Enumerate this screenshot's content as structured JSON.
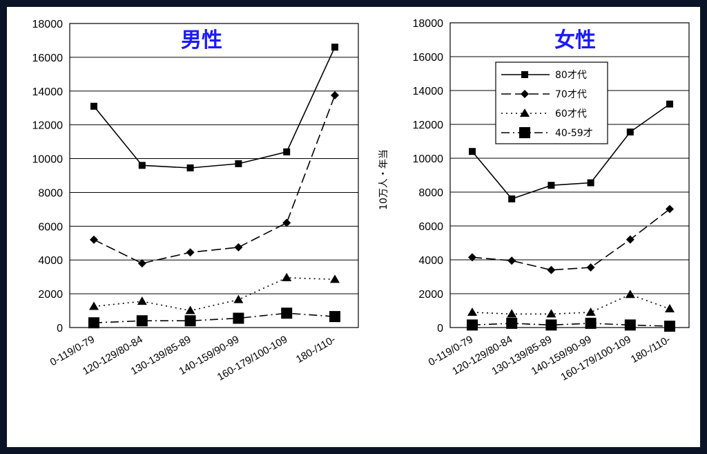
{
  "colors": {
    "title": "#1a1aff",
    "line": "#000000",
    "background": "#0b1326"
  },
  "chart_data": [
    {
      "type": "line",
      "title": "男性",
      "ylabel": "",
      "xlabel": "",
      "ylim": [
        0,
        18000
      ],
      "yticks": [
        0,
        2000,
        4000,
        6000,
        8000,
        10000,
        12000,
        14000,
        16000,
        18000
      ],
      "grid": true,
      "categories": [
        "0-119/0-79",
        "120-129/80-84",
        "130-139/85-89",
        "140-159/90-99",
        "160-179/100-109",
        "180-/110-"
      ],
      "series": [
        {
          "name": "80才代",
          "marker": "square",
          "dash": "solid",
          "values": [
            13100,
            9600,
            9450,
            9700,
            10400,
            16600
          ]
        },
        {
          "name": "70才代",
          "marker": "diamond",
          "dash": "dashed",
          "values": [
            5200,
            3800,
            4450,
            4750,
            6200,
            13750
          ]
        },
        {
          "name": "60才代",
          "marker": "triangle",
          "dash": "dotted",
          "values": [
            1250,
            1550,
            1000,
            1650,
            2950,
            2850
          ]
        },
        {
          "name": "40-59才",
          "marker": "big-square",
          "dash": "dashdot",
          "values": [
            280,
            400,
            400,
            550,
            850,
            650
          ]
        }
      ]
    },
    {
      "type": "line",
      "title": "女性",
      "ylabel": "10万人・年当",
      "xlabel": "",
      "ylim": [
        0,
        18000
      ],
      "yticks": [
        0,
        2000,
        4000,
        6000,
        8000,
        10000,
        12000,
        14000,
        16000,
        18000
      ],
      "grid": true,
      "legend": "top-center",
      "categories": [
        "0-119/0-79",
        "120-129/80-84",
        "130-139/85-89",
        "140-159/90-99",
        "160-179/100-109",
        "180-/110-"
      ],
      "series": [
        {
          "name": "80才代",
          "marker": "square",
          "dash": "solid",
          "values": [
            10400,
            7600,
            8400,
            8550,
            11550,
            13200
          ]
        },
        {
          "name": "70才代",
          "marker": "diamond",
          "dash": "dashed",
          "values": [
            4150,
            3950,
            3400,
            3550,
            5200,
            7000
          ]
        },
        {
          "name": "60才代",
          "marker": "triangle",
          "dash": "dotted",
          "values": [
            900,
            800,
            800,
            900,
            1950,
            1100
          ]
        },
        {
          "name": "40-59才",
          "marker": "big-square",
          "dash": "dashdot",
          "values": [
            150,
            250,
            150,
            250,
            150,
            80
          ]
        }
      ]
    }
  ]
}
